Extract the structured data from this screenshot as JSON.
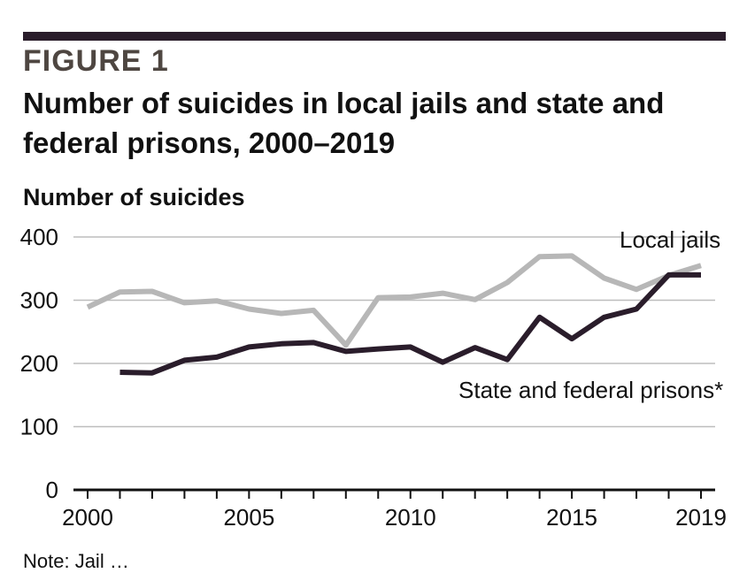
{
  "figure_label": "FIGURE 1",
  "title": "Number of suicides in local jails and state and federal prisons, 2000–2019",
  "footnote": "Note: Jail …",
  "colors": {
    "local_jails": "#b7b7b7",
    "prisons": "#2a1d2b",
    "bar": "#2a1d2b",
    "grid": "#bdbdbd"
  },
  "chart_data": {
    "type": "line",
    "ylabel": "Number of suicides",
    "xlabel": "",
    "ylim": [
      0,
      400
    ],
    "yticks": [
      0,
      100,
      200,
      300,
      400
    ],
    "xlim": [
      2000,
      2019
    ],
    "xticks": [
      2000,
      2005,
      2010,
      2015,
      2019
    ],
    "grid": true,
    "series": [
      {
        "name": "Local jails",
        "color": "#b7b7b7",
        "x": [
          2000,
          2001,
          2002,
          2003,
          2004,
          2005,
          2006,
          2007,
          2008,
          2009,
          2010,
          2011,
          2012,
          2013,
          2014,
          2015,
          2016,
          2017,
          2018,
          2019
        ],
        "values": [
          289,
          313,
          314,
          296,
          299,
          286,
          279,
          284,
          229,
          304,
          305,
          311,
          301,
          328,
          369,
          370,
          335,
          317,
          339,
          355
        ]
      },
      {
        "name": "State and federal prisons*",
        "color": "#2a1d2b",
        "x": [
          2001,
          2002,
          2003,
          2004,
          2005,
          2006,
          2007,
          2008,
          2009,
          2010,
          2011,
          2012,
          2013,
          2014,
          2015,
          2016,
          2017,
          2018,
          2019
        ],
        "values": [
          186,
          185,
          205,
          210,
          226,
          231,
          233,
          219,
          223,
          226,
          202,
          225,
          206,
          273,
          239,
          273,
          286,
          340,
          340
        ]
      }
    ]
  }
}
